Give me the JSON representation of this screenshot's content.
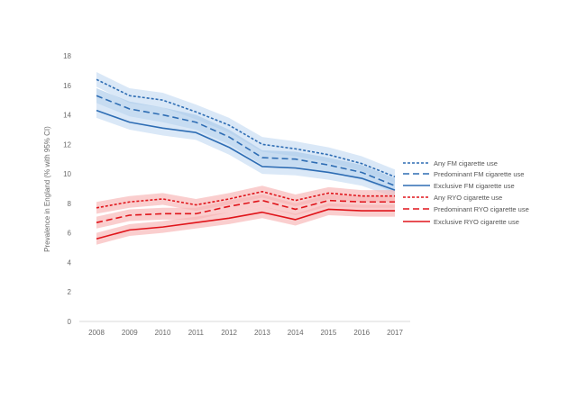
{
  "chart_data": {
    "type": "line",
    "title": "",
    "xlabel": "",
    "ylabel": "Prevalence in England (% with 95% CI)",
    "x": [
      2008,
      2009,
      2010,
      2011,
      2012,
      2013,
      2014,
      2015,
      2016,
      2017
    ],
    "x_tick_labels": [
      "2008",
      "2009",
      "2010",
      "2011",
      "2012",
      "2013",
      "2014",
      "2015",
      "2016",
      "2017"
    ],
    "ylim": [
      0,
      18
    ],
    "y_ticks": [
      0,
      2,
      4,
      6,
      8,
      10,
      12,
      14,
      16,
      18
    ],
    "y_tick_labels": [
      "0",
      "2",
      "4",
      "6",
      "8",
      "10",
      "12",
      "14",
      "16",
      "18"
    ],
    "grid": false,
    "legend_position": "right",
    "series": [
      {
        "name": "Any FM cigarette use",
        "color": "#2e6db4",
        "band_color": "#c6dcf2",
        "dash": "short-dash",
        "values": [
          16.4,
          15.3,
          15.0,
          14.2,
          13.3,
          12.0,
          11.7,
          11.3,
          10.7,
          9.8
        ],
        "ci": 0.5
      },
      {
        "name": "Predominant FM cigarette use",
        "color": "#2e6db4",
        "band_color": "#a9c9ea",
        "dash": "long-dash",
        "values": [
          15.3,
          14.4,
          14.0,
          13.5,
          12.5,
          11.1,
          11.0,
          10.6,
          10.1,
          9.2
        ],
        "ci": 0.5
      },
      {
        "name": "Exclusive FM cigarette use",
        "color": "#2e6db4",
        "band_color": "#c6dcf2",
        "dash": "solid",
        "values": [
          14.3,
          13.5,
          13.1,
          12.8,
          11.8,
          10.5,
          10.4,
          10.1,
          9.7,
          8.9
        ],
        "ci": 0.5
      },
      {
        "name": "Any RYO cigarette use",
        "color": "#e0151b",
        "band_color": "#f7b4b4",
        "dash": "short-dash",
        "values": [
          7.7,
          8.1,
          8.3,
          7.9,
          8.3,
          8.8,
          8.2,
          8.7,
          8.5,
          8.5
        ],
        "ci": 0.4
      },
      {
        "name": "Predominant RYO cigarette use",
        "color": "#e0151b",
        "band_color": "#f7b4b4",
        "dash": "long-dash",
        "values": [
          6.7,
          7.2,
          7.3,
          7.3,
          7.8,
          8.2,
          7.6,
          8.2,
          8.1,
          8.1
        ],
        "ci": 0.4
      },
      {
        "name": "Exclusive RYO cigarette use",
        "color": "#e0151b",
        "band_color": "#f7b4b4",
        "dash": "solid",
        "values": [
          5.6,
          6.2,
          6.4,
          6.7,
          7.0,
          7.4,
          6.9,
          7.6,
          7.5,
          7.5
        ],
        "ci": 0.4
      }
    ]
  }
}
